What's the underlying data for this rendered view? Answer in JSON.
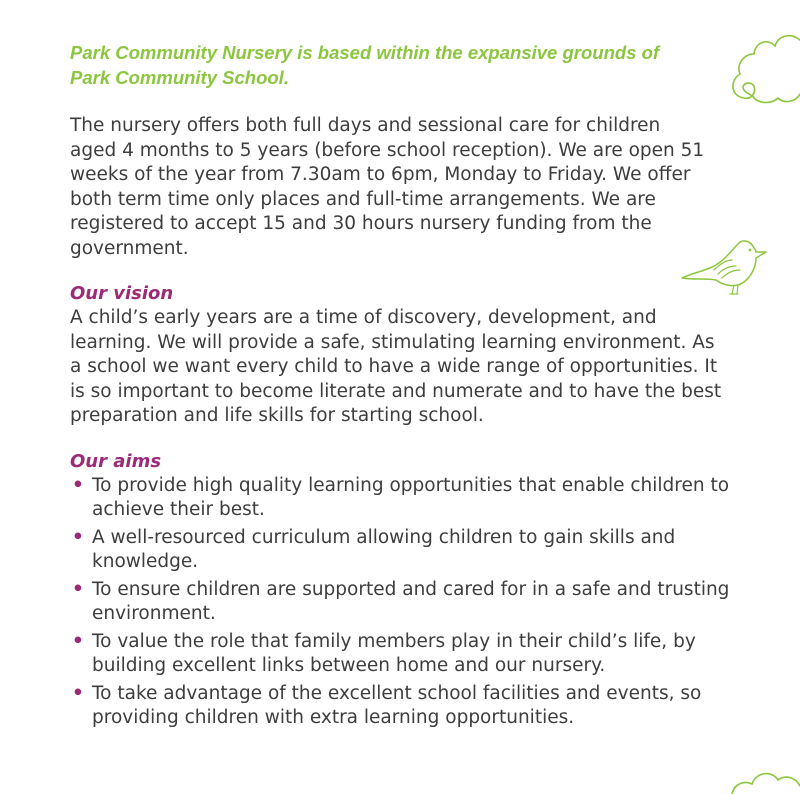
{
  "intro": "Park Community Nursery is based within the expansive grounds of Park Community School.",
  "paragraph1": "The nursery offers both full days and sessional care for children aged 4 months to 5 years (before school reception). We are open 51 weeks of the year from 7.30am to 6pm, Monday to Friday. We offer both term time only places and full-time arrangements. We are registered to accept 15 and 30 hours nursery funding from the government.",
  "vision": {
    "heading": "Our vision",
    "text": "A child’s early years are a time of discovery, development, and learning. We will provide a safe, stimulating learning environment. As a school we want every child to have a wide range of opportunities. It is so important to become literate and numerate and to have the best preparation and life skills for starting school."
  },
  "aims": {
    "heading": "Our aims",
    "bullet": "•",
    "items": [
      "To provide high quality learning opportunities that enable children to achieve their best.",
      "A well-resourced curriculum allowing children to gain skills and knowledge.",
      "To ensure children are supported and cared for in a safe and trusting environment.",
      "To value the role that family members play in their child’s life, by building excellent links between home and our nursery.",
      "To take advantage of the excellent school facilities and events, so providing children with extra learning opportunities."
    ]
  },
  "decorations": {
    "top_right": "cloud-swirl-icon",
    "middle_right": "bird-icon",
    "bottom_right": "cloud-icon"
  },
  "colors": {
    "accent_green": "#8cc63f",
    "heading_purple": "#9b2a77",
    "text": "#3d3d3d"
  }
}
